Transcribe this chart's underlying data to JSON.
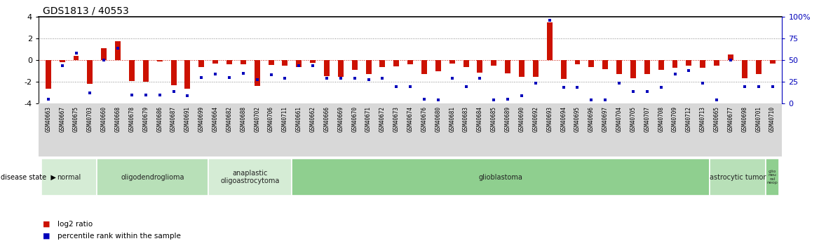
{
  "title": "GDS1813 / 40553",
  "samples": [
    "GSM40663",
    "GSM40667",
    "GSM40675",
    "GSM40703",
    "GSM40660",
    "GSM40668",
    "GSM40678",
    "GSM40679",
    "GSM40686",
    "GSM40687",
    "GSM40691",
    "GSM40699",
    "GSM40664",
    "GSM40682",
    "GSM40688",
    "GSM40702",
    "GSM40706",
    "GSM40711",
    "GSM40661",
    "GSM40662",
    "GSM40666",
    "GSM40669",
    "GSM40670",
    "GSM40671",
    "GSM40672",
    "GSM40673",
    "GSM40674",
    "GSM40676",
    "GSM40680",
    "GSM40681",
    "GSM40683",
    "GSM40684",
    "GSM40685",
    "GSM40689",
    "GSM40690",
    "GSM40692",
    "GSM40693",
    "GSM40694",
    "GSM40695",
    "GSM40696",
    "GSM40697",
    "GSM40704",
    "GSM40705",
    "GSM40707",
    "GSM40708",
    "GSM40709",
    "GSM40712",
    "GSM40713",
    "GSM40665",
    "GSM40677",
    "GSM40698",
    "GSM40701",
    "GSM40710"
  ],
  "log2_ratio": [
    -2.6,
    -0.15,
    0.4,
    -2.2,
    1.1,
    1.75,
    -1.9,
    -1.95,
    -0.1,
    -2.3,
    -2.6,
    -0.6,
    -0.3,
    -0.4,
    -0.4,
    -2.35,
    -0.45,
    -0.5,
    -0.65,
    -0.25,
    -1.45,
    -1.55,
    -0.9,
    -1.25,
    -0.65,
    -0.55,
    -0.4,
    -1.25,
    -1.0,
    -0.3,
    -0.6,
    -1.15,
    -0.5,
    -1.2,
    -1.55,
    -1.5,
    3.5,
    -1.75,
    -0.35,
    -0.6,
    -0.8,
    -1.3,
    -1.65,
    -1.3,
    -0.9,
    -0.7,
    -0.5,
    -0.7,
    -0.5,
    0.5,
    -1.65,
    -1.25,
    -0.3
  ],
  "percentile": [
    5,
    44,
    58,
    12,
    50,
    64,
    10,
    10,
    10,
    14,
    9,
    30,
    34,
    30,
    35,
    28,
    33,
    29,
    44,
    44,
    29,
    29,
    29,
    28,
    29,
    20,
    20,
    5,
    4,
    29,
    20,
    29,
    4,
    5,
    9,
    24,
    96,
    19,
    19,
    4,
    4,
    24,
    14,
    14,
    19,
    34,
    38,
    24,
    4,
    50,
    20,
    20,
    20
  ],
  "disease_groups": [
    {
      "label": "normal",
      "start": 0,
      "end": 4,
      "color": "#d5ecd5"
    },
    {
      "label": "oligodendroglioma",
      "start": 4,
      "end": 12,
      "color": "#b8e0b8"
    },
    {
      "label": "anaplastic\noligoastrocytoma",
      "start": 12,
      "end": 18,
      "color": "#d5ecd5"
    },
    {
      "label": "glioblastoma",
      "start": 18,
      "end": 48,
      "color": "#8fcf8f"
    },
    {
      "label": "astrocytic tumor",
      "start": 48,
      "end": 52,
      "color": "#b8e0b8"
    },
    {
      "label": "glio\nneu\nral\nneop",
      "start": 52,
      "end": 53,
      "color": "#8fcf8f"
    }
  ],
  "ylim_left": [
    -4,
    4
  ],
  "yticks_left": [
    -4,
    -2,
    0,
    2,
    4
  ],
  "yticks_right_vals": [
    -4,
    -2,
    0,
    2,
    4
  ],
  "yticks_right_labels": [
    "0",
    "25",
    "50",
    "75",
    "100%"
  ],
  "bar_color": "#cc1100",
  "dot_color": "#0000bb",
  "figure_bg": "#ffffff",
  "plot_bg": "#ffffff",
  "xlabel_bg": "#d8d8d8"
}
